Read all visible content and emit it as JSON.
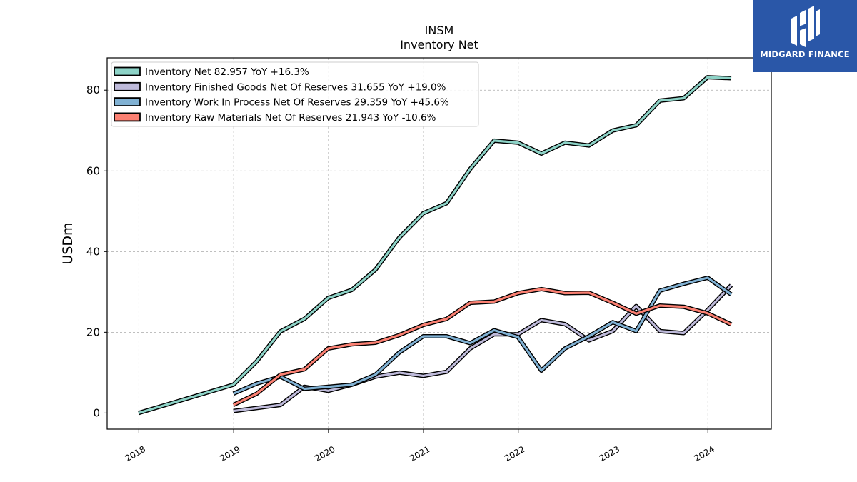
{
  "chart_data": {
    "type": "line",
    "title": "INSM",
    "subtitle": "Inventory Net",
    "ylabel": "USDm",
    "xlabel": "",
    "xlim": [
      "2017-09-01",
      "2024-09-01"
    ],
    "ylim": [
      -4,
      88
    ],
    "yticks": [
      0,
      20,
      40,
      60,
      80
    ],
    "xticks": [
      "2018",
      "2019",
      "2020",
      "2021",
      "2022",
      "2023",
      "2024"
    ],
    "grid": true,
    "legend": "top-left",
    "series": [
      {
        "name": "Inventory Net",
        "label": "Inventory Net  82.957 YoY +16.3%",
        "color": "#8dd3c7",
        "points": [
          [
            "2017-12-31",
            0.0
          ],
          [
            "2018-12-31",
            7.0
          ],
          [
            "2019-03-31",
            12.8
          ],
          [
            "2019-06-30",
            20.2
          ],
          [
            "2019-09-30",
            23.3
          ],
          [
            "2019-12-31",
            28.5
          ],
          [
            "2020-03-31",
            30.5
          ],
          [
            "2020-06-30",
            35.5
          ],
          [
            "2020-09-30",
            43.5
          ],
          [
            "2020-12-31",
            49.5
          ],
          [
            "2021-03-31",
            52.0
          ],
          [
            "2021-06-30",
            60.5
          ],
          [
            "2021-09-30",
            67.5
          ],
          [
            "2021-12-31",
            67.0
          ],
          [
            "2022-03-31",
            64.3
          ],
          [
            "2022-06-30",
            67.0
          ],
          [
            "2022-09-30",
            66.3
          ],
          [
            "2022-12-31",
            70.0
          ],
          [
            "2023-03-31",
            71.3
          ],
          [
            "2023-06-30",
            77.4
          ],
          [
            "2023-09-30",
            78.0
          ],
          [
            "2023-12-31",
            83.2
          ],
          [
            "2024-03-31",
            82.957
          ]
        ]
      },
      {
        "name": "Inventory Finished Goods Net Of Reserves",
        "label": "Inventory Finished Goods Net Of Reserves  31.655 YoY +19.0%",
        "color": "#bebada",
        "points": [
          [
            "2018-12-31",
            0.5
          ],
          [
            "2019-06-30",
            2.0
          ],
          [
            "2019-09-30",
            6.5
          ],
          [
            "2019-12-31",
            5.5
          ],
          [
            "2020-03-31",
            7.0
          ],
          [
            "2020-06-30",
            9.0
          ],
          [
            "2020-09-30",
            10.0
          ],
          [
            "2020-12-31",
            9.2
          ],
          [
            "2021-03-31",
            10.2
          ],
          [
            "2021-06-30",
            16.0
          ],
          [
            "2021-09-30",
            19.5
          ],
          [
            "2021-12-31",
            19.5
          ],
          [
            "2022-03-31",
            23.0
          ],
          [
            "2022-06-30",
            22.0
          ],
          [
            "2022-09-30",
            18.0
          ],
          [
            "2022-12-31",
            20.3
          ],
          [
            "2023-03-31",
            26.5
          ],
          [
            "2023-06-30",
            20.3
          ],
          [
            "2023-09-30",
            19.8
          ],
          [
            "2023-12-31",
            25.5
          ],
          [
            "2024-03-31",
            31.655
          ]
        ]
      },
      {
        "name": "Inventory Work In Process Net Of Reserves",
        "label": "Inventory Work In Process Net Of Reserves  29.359 YoY +45.6%",
        "color": "#80b1d3",
        "points": [
          [
            "2018-12-31",
            4.8
          ],
          [
            "2019-03-31",
            7.3
          ],
          [
            "2019-06-30",
            9.0
          ],
          [
            "2019-09-30",
            6.0
          ],
          [
            "2019-12-31",
            6.5
          ],
          [
            "2020-03-31",
            7.0
          ],
          [
            "2020-06-30",
            9.5
          ],
          [
            "2020-09-30",
            15.0
          ],
          [
            "2020-12-31",
            19.0
          ],
          [
            "2021-03-31",
            19.0
          ],
          [
            "2021-06-30",
            17.3
          ],
          [
            "2021-09-30",
            20.5
          ],
          [
            "2021-12-31",
            18.8
          ],
          [
            "2022-03-31",
            10.5
          ],
          [
            "2022-06-30",
            16.0
          ],
          [
            "2022-09-30",
            19.0
          ],
          [
            "2022-12-31",
            22.5
          ],
          [
            "2023-03-31",
            20.3
          ],
          [
            "2023-06-30",
            30.3
          ],
          [
            "2023-09-30",
            32.0
          ],
          [
            "2023-12-31",
            33.5
          ],
          [
            "2024-03-31",
            29.359
          ]
        ]
      },
      {
        "name": "Inventory Raw Materials Net Of Reserves",
        "label": "Inventory Raw Materials Net Of Reserves  21.943 YoY -10.6%",
        "color": "#fb8072",
        "points": [
          [
            "2018-12-31",
            2.0
          ],
          [
            "2019-03-31",
            4.8
          ],
          [
            "2019-06-30",
            9.5
          ],
          [
            "2019-09-30",
            10.8
          ],
          [
            "2019-12-31",
            16.0
          ],
          [
            "2020-03-31",
            17.0
          ],
          [
            "2020-06-30",
            17.4
          ],
          [
            "2020-09-30",
            19.3
          ],
          [
            "2020-12-31",
            21.8
          ],
          [
            "2021-03-31",
            23.3
          ],
          [
            "2021-06-30",
            27.3
          ],
          [
            "2021-09-30",
            27.6
          ],
          [
            "2021-12-31",
            29.7
          ],
          [
            "2022-03-31",
            30.7
          ],
          [
            "2022-06-30",
            29.7
          ],
          [
            "2022-09-30",
            29.8
          ],
          [
            "2022-12-31",
            27.3
          ],
          [
            "2023-03-31",
            24.6
          ],
          [
            "2023-06-30",
            26.6
          ],
          [
            "2023-09-30",
            26.3
          ],
          [
            "2023-12-31",
            24.7
          ],
          [
            "2024-03-31",
            21.943
          ]
        ]
      }
    ]
  },
  "branding": {
    "name": "MIDGARD FINANCE",
    "background": "#2a57a8",
    "text_color": "#ffffff"
  }
}
